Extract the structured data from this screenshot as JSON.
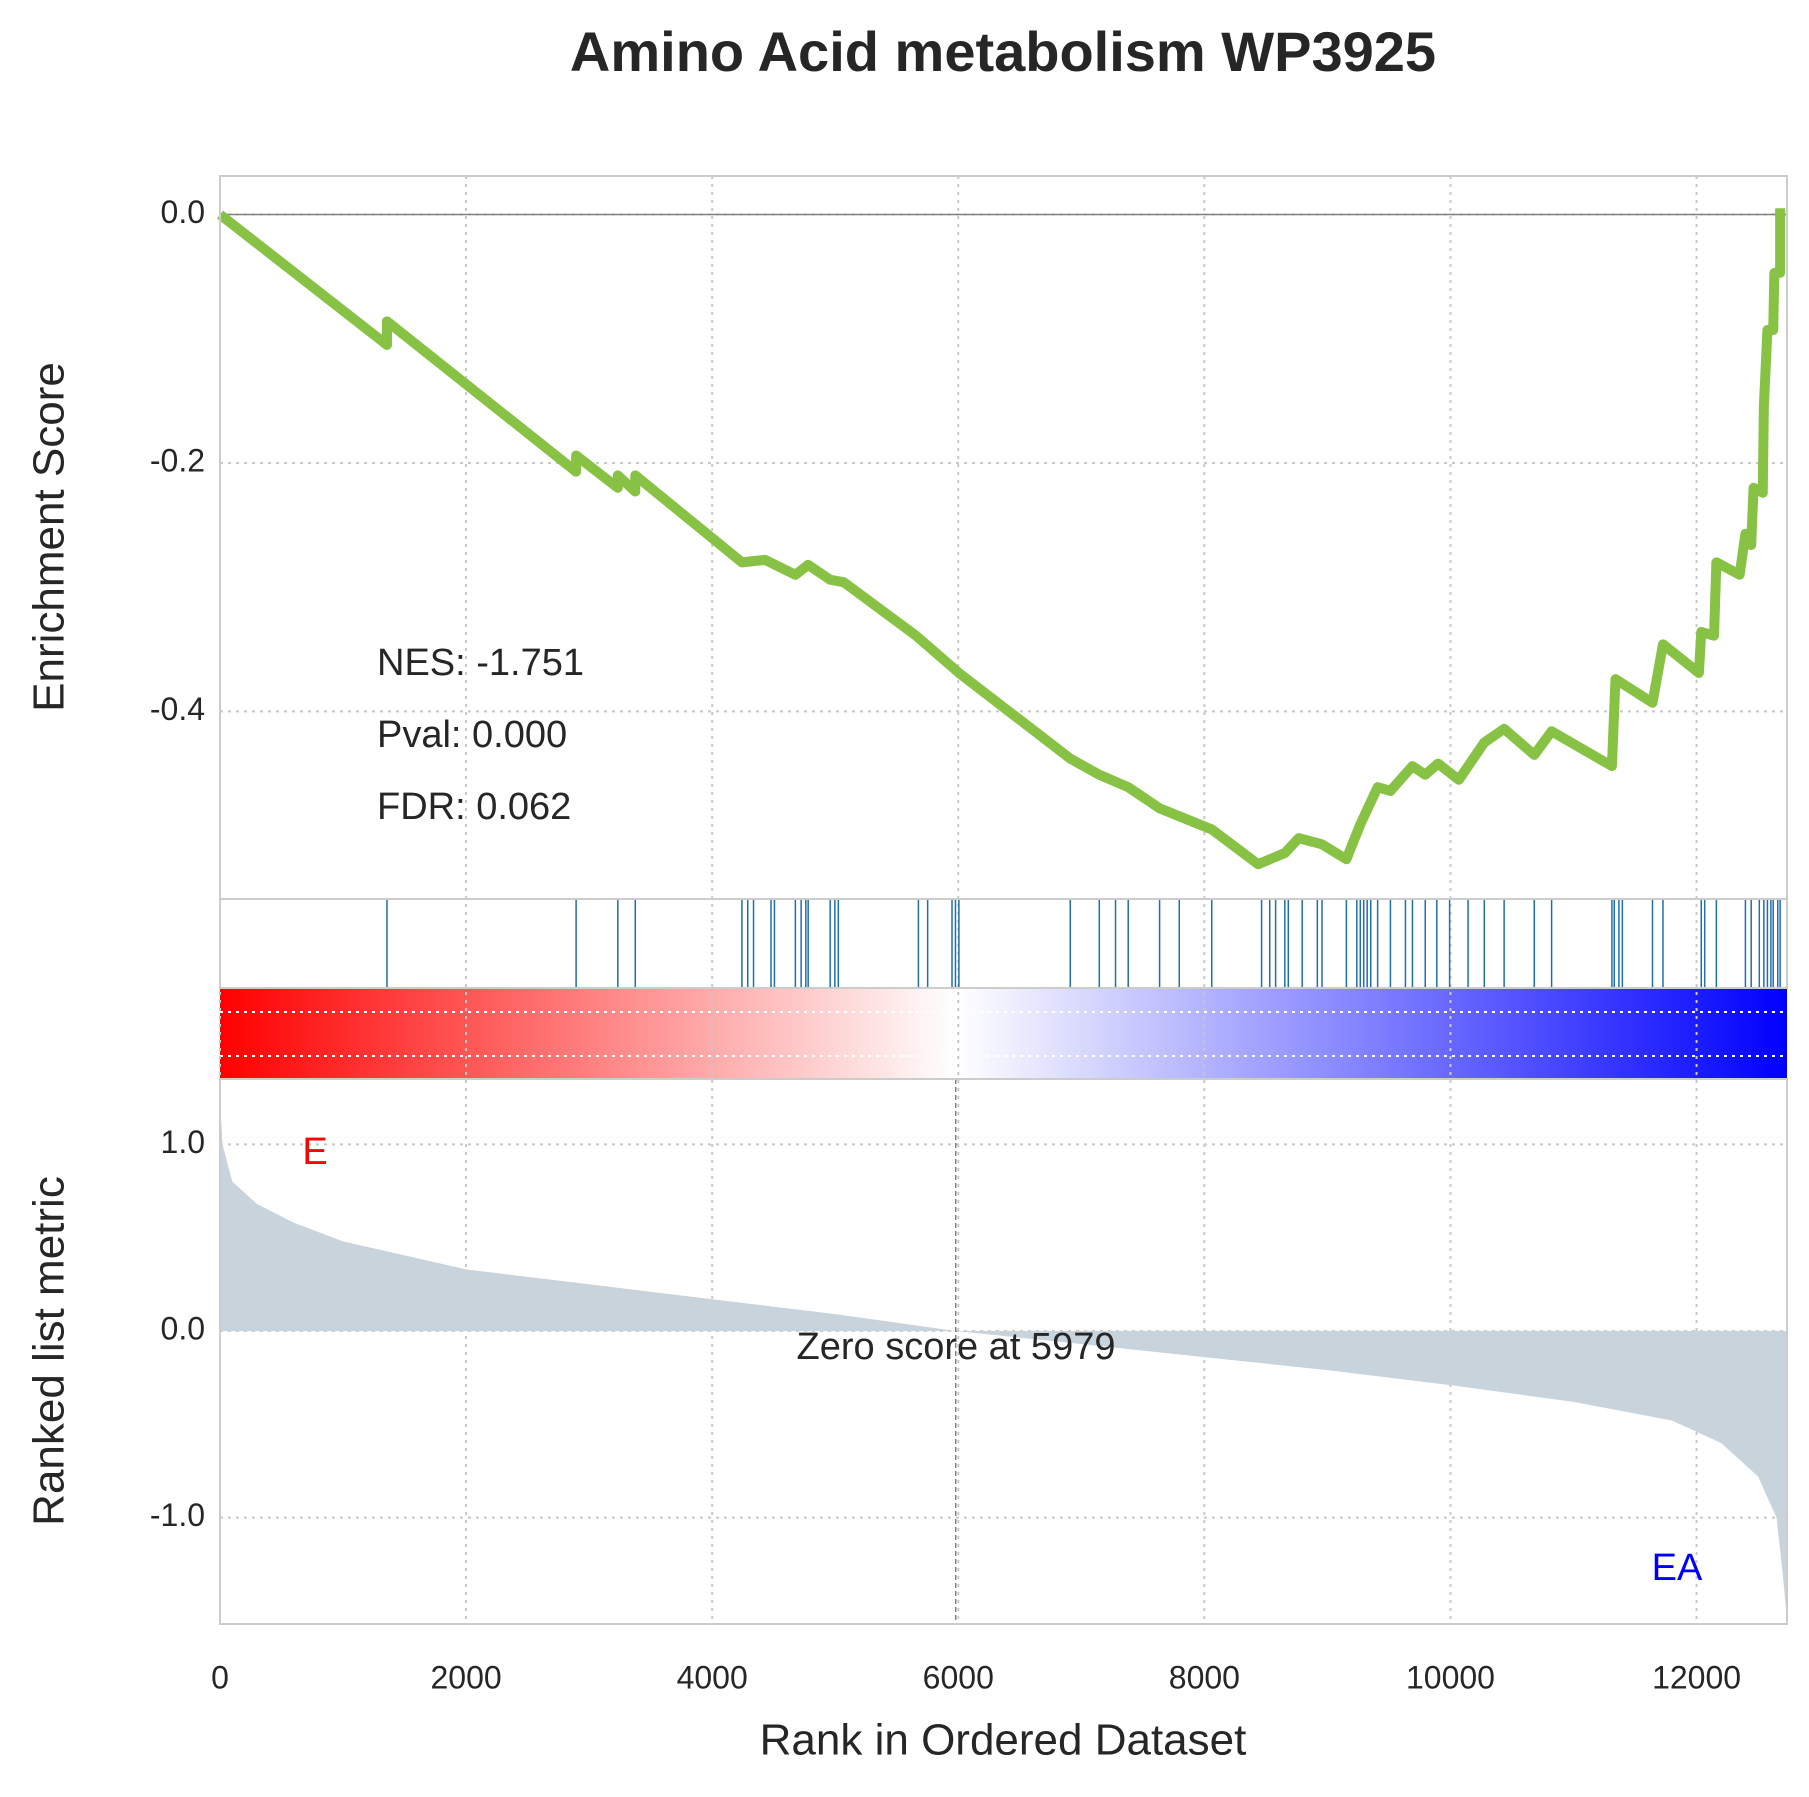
{
  "chart_data": [
    {
      "type": "line",
      "title": "Amino Acid metabolism WP3925",
      "ylabel": "Enrichment Score",
      "color": "#88c245",
      "x": [
        0,
        1357,
        1357,
        2894,
        2894,
        3233,
        3233,
        3375,
        3375,
        4242,
        4430,
        4676,
        4780,
        4959,
        5070,
        5656,
        6005,
        6910,
        7146,
        7381,
        7636,
        8060,
        8437,
        8654,
        8767,
        8956,
        9154,
        9267,
        9408,
        9512,
        9691,
        9795,
        9899,
        10068,
        10275,
        10436,
        10681,
        10822,
        11312,
        11341,
        11642,
        11727,
        12019,
        12038,
        12142,
        12161,
        12350,
        12397,
        12444,
        12463,
        12538,
        12547,
        12576,
        12623,
        12632,
        12679,
        12679
      ],
      "values": [
        0,
        -0.105,
        -0.086,
        -0.207,
        -0.194,
        -0.22,
        -0.21,
        -0.223,
        -0.21,
        -0.28,
        -0.278,
        -0.29,
        -0.282,
        -0.294,
        -0.296,
        -0.339,
        -0.369,
        -0.438,
        -0.451,
        -0.461,
        -0.478,
        -0.495,
        -0.523,
        -0.514,
        -0.502,
        -0.507,
        -0.519,
        -0.491,
        -0.461,
        -0.464,
        -0.444,
        -0.451,
        -0.442,
        -0.455,
        -0.425,
        -0.414,
        -0.435,
        -0.416,
        -0.444,
        -0.374,
        -0.393,
        -0.346,
        -0.369,
        -0.336,
        -0.339,
        -0.28,
        -0.29,
        -0.257,
        -0.266,
        -0.22,
        -0.224,
        -0.154,
        -0.093,
        -0.093,
        -0.047,
        -0.047,
        0.005
      ],
      "ylim": [
        -0.551,
        0.031
      ],
      "yticks": [
        {
          "value": 0,
          "label": "0.0"
        },
        {
          "value": -0.2,
          "label": "-0.2"
        },
        {
          "value": -0.4,
          "label": "-0.4"
        }
      ],
      "annotations": [
        "NES: -1.751",
        "Pval: 0.000",
        "FDR: 0.062"
      ],
      "grid": true
    },
    {
      "type": "rug",
      "color": "#1f6fa8",
      "x": [
        1357,
        2894,
        3233,
        3375,
        4242,
        4289,
        4336,
        4478,
        4506,
        4676,
        4723,
        4761,
        4780,
        4959,
        4997,
        5025,
        5676,
        5751,
        5949,
        5977,
        6005,
        6910,
        7146,
        7278,
        7381,
        7636,
        7796,
        8060,
        8465,
        8531,
        8579,
        8654,
        8682,
        8795,
        8918,
        8956,
        9154,
        9239,
        9267,
        9295,
        9323,
        9352,
        9408,
        9512,
        9634,
        9691,
        9795,
        9889,
        9993,
        10143,
        10275,
        10436,
        10681,
        10822,
        11312,
        11331,
        11369,
        11397,
        11642,
        11727,
        12038,
        12066,
        12161,
        12397,
        12444,
        12510,
        12547,
        12576,
        12604,
        12623,
        12660,
        12679
      ]
    },
    {
      "type": "area",
      "ylabel": "Ranked list metric",
      "xlabel": "Rank in Ordered Dataset",
      "color": "#c8d3dc",
      "x": [
        0,
        20,
        100,
        300,
        600,
        1000,
        2000,
        3000,
        4000,
        5000,
        5979,
        7000,
        8000,
        9000,
        10000,
        11000,
        11800,
        12200,
        12500,
        12650,
        12700,
        12735
      ],
      "values": [
        1.25,
        1.0,
        0.8,
        0.68,
        0.58,
        0.48,
        0.33,
        0.25,
        0.17,
        0.09,
        0,
        -0.07,
        -0.14,
        -0.21,
        -0.29,
        -0.38,
        -0.48,
        -0.6,
        -0.78,
        -1.0,
        -1.3,
        -1.55
      ],
      "xlim": [
        0,
        12735
      ],
      "xticks": [
        0,
        2000,
        4000,
        6000,
        8000,
        10000,
        12000
      ],
      "ylim": [
        -1.57,
        1.35
      ],
      "yticks": [
        {
          "value": 1,
          "label": "1.0"
        },
        {
          "value": 0,
          "label": "0.0"
        },
        {
          "value": -1,
          "label": "-1.0"
        }
      ],
      "zero_rank": 5979,
      "zero_label": "Zero score at 5979",
      "pos_label": "E",
      "neg_label": "EA",
      "pos_color": "#ff0000",
      "neg_color": "#0000ff",
      "grid": true
    }
  ]
}
